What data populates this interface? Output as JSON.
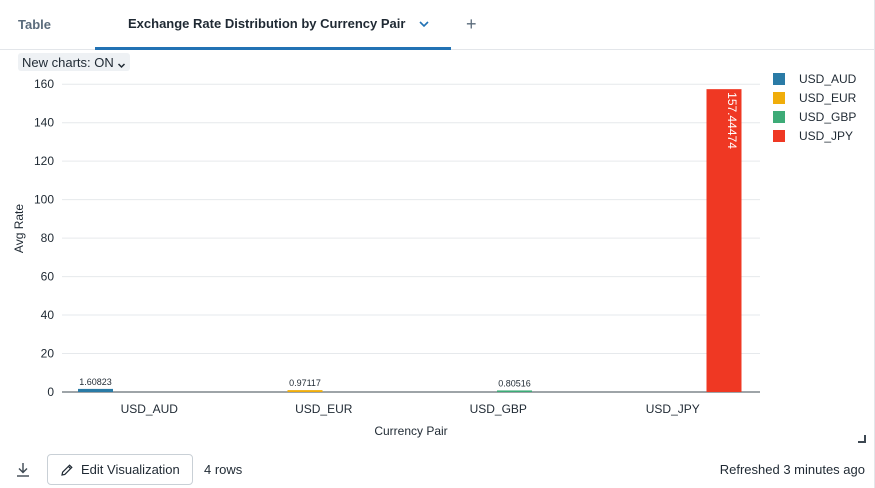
{
  "tabs": {
    "table_label": "Table",
    "active_label": "Exchange Rate Distribution by Currency Pair",
    "add_label": "+"
  },
  "toolbar": {
    "new_charts_label": "New charts: ON"
  },
  "footer": {
    "edit_label": "Edit Visualization",
    "rows_label": "4 rows",
    "refreshed_label": "Refreshed 3 minutes ago"
  },
  "icons": {
    "download": "download-icon",
    "edit": "pencil-icon",
    "chevron": "chevron-down-icon",
    "resize": "resize-handle-icon"
  },
  "chart_data": {
    "type": "bar",
    "xlabel": "Currency Pair",
    "ylabel": "Avg Rate",
    "ylim": [
      0,
      170
    ],
    "yticks": [
      0,
      20,
      40,
      60,
      80,
      100,
      120,
      140,
      160
    ],
    "grid": true,
    "legend_placement": "top-right",
    "categories": [
      "USD_AUD",
      "USD_EUR",
      "USD_GBP",
      "USD_JPY"
    ],
    "series": [
      {
        "name": "USD_AUD",
        "color": "#2a7ba6",
        "values": [
          1.60823,
          null,
          null,
          null
        ],
        "labels": [
          "1.60823",
          "",
          "",
          ""
        ]
      },
      {
        "name": "USD_EUR",
        "color": "#f0ad0a",
        "values": [
          null,
          0.97117,
          null,
          null
        ],
        "labels": [
          "",
          "0.97117",
          "",
          ""
        ]
      },
      {
        "name": "USD_GBP",
        "color": "#3dab77",
        "values": [
          null,
          null,
          0.80516,
          null
        ],
        "labels": [
          "",
          "",
          "0.80516",
          ""
        ]
      },
      {
        "name": "USD_JPY",
        "color": "#ef3823",
        "values": [
          null,
          null,
          null,
          157.44474
        ],
        "labels": [
          "",
          "",
          "",
          "157.44474"
        ]
      }
    ]
  }
}
